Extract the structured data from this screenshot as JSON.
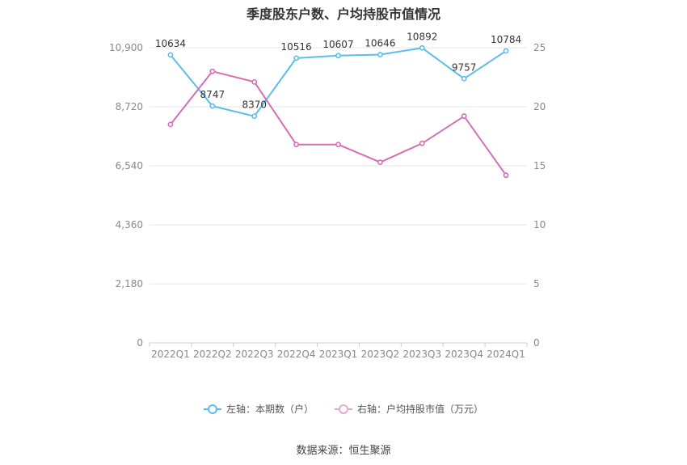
{
  "chart_data": {
    "type": "line",
    "title": "季度股东户数、户均持股市值情况",
    "categories": [
      "2022Q1",
      "2022Q2",
      "2022Q3",
      "2022Q4",
      "2023Q1",
      "2023Q2",
      "2023Q3",
      "2023Q4",
      "2024Q1"
    ],
    "left_axis": {
      "ylim": [
        0,
        10900
      ],
      "ticks": [
        "0",
        "2,180",
        "4,360",
        "6,540",
        "8,720",
        "10,900"
      ]
    },
    "right_axis": {
      "ylim": [
        0,
        25
      ],
      "ticks": [
        "0",
        "5",
        "10",
        "15",
        "20",
        "25"
      ]
    },
    "series": [
      {
        "name": "左轴：本期数（户）",
        "axis": "left",
        "color": "#5bbdea",
        "values": [
          10634,
          8747,
          8370,
          10516,
          10607,
          10646,
          10892,
          9757,
          10784
        ],
        "labels": [
          "10634",
          "8747",
          "8370",
          "10516",
          "10607",
          "10646",
          "10892",
          "9757",
          "10784"
        ]
      },
      {
        "name": "右轴：户均持股市值（万元）",
        "axis": "right",
        "color": "#d46eb5",
        "values": [
          18.5,
          23.0,
          22.1,
          16.8,
          16.8,
          15.3,
          16.9,
          19.2,
          14.2
        ]
      }
    ],
    "grid": true,
    "legend_position": "bottom"
  },
  "source": "数据来源：恒生聚源"
}
